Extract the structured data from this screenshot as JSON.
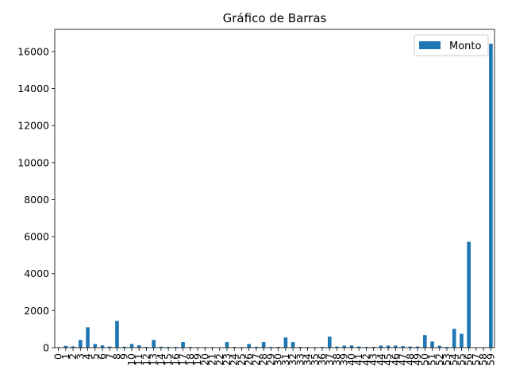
{
  "chart_data": {
    "type": "bar",
    "title": "Gráfico de Barras",
    "xlabel": "",
    "ylabel": "",
    "ylim": [
      0,
      17200
    ],
    "yticks": [
      0,
      2000,
      4000,
      6000,
      8000,
      10000,
      12000,
      14000,
      16000
    ],
    "legend_position": "top-right",
    "grid": false,
    "bar_color": "#1f77b4",
    "categories": [
      "0",
      "1",
      "2",
      "3",
      "4",
      "5",
      "6",
      "7",
      "8",
      "9",
      "10",
      "11",
      "12",
      "13",
      "14",
      "15",
      "16",
      "17",
      "18",
      "19",
      "20",
      "21",
      "22",
      "23",
      "24",
      "25",
      "26",
      "27",
      "28",
      "29",
      "30",
      "31",
      "32",
      "33",
      "34",
      "35",
      "36",
      "37",
      "38",
      "39",
      "40",
      "41",
      "42",
      "43",
      "44",
      "45",
      "46",
      "47",
      "48",
      "49",
      "50",
      "51",
      "52",
      "53",
      "54",
      "55",
      "56",
      "57",
      "58",
      "59"
    ],
    "series": [
      {
        "name": "Monto",
        "values": [
          20,
          100,
          70,
          420,
          1100,
          200,
          120,
          60,
          1450,
          50,
          200,
          130,
          40,
          420,
          50,
          40,
          40,
          300,
          40,
          30,
          30,
          30,
          20,
          300,
          40,
          30,
          200,
          50,
          300,
          40,
          40,
          550,
          300,
          40,
          30,
          30,
          40,
          600,
          60,
          110,
          120,
          60,
          40,
          40,
          110,
          110,
          110,
          80,
          60,
          60,
          680,
          330,
          100,
          40,
          1020,
          750,
          5720,
          10,
          10,
          16420
        ]
      }
    ]
  }
}
